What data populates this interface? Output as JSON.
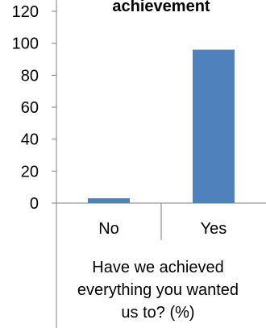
{
  "chart_data": {
    "type": "bar",
    "title": "achievement",
    "categories": [
      "No",
      "Yes"
    ],
    "values": [
      3,
      96
    ],
    "xlabel": [
      "Have we achieved",
      "everything you wanted",
      "us to? (%)"
    ],
    "ylabel": "",
    "ylim": [
      0,
      120
    ],
    "yticks": [
      0,
      20,
      40,
      60,
      80,
      100,
      120
    ],
    "grid": false,
    "legend": "none",
    "bar_color": "#4f81bd",
    "axis_color": "#7f7f7f"
  }
}
